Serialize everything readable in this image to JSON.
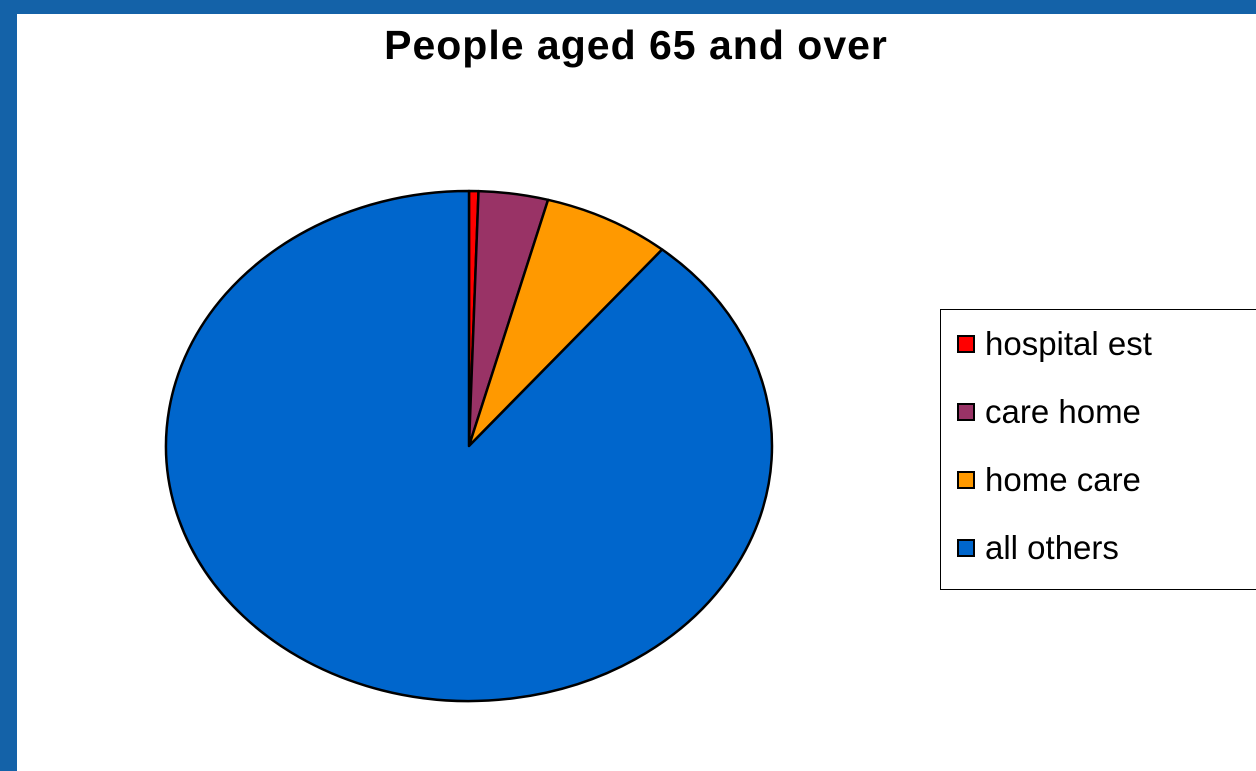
{
  "chart_data": {
    "type": "pie",
    "title": "People aged 65 and over",
    "legend_position": "right",
    "categories": [
      "hospital est",
      "care home",
      "home care",
      "all others"
    ],
    "values": [
      0.5,
      3.7,
      6.8,
      89.0
    ],
    "colors": [
      "#ff0000",
      "#993366",
      "#ff9900",
      "#0066cc"
    ],
    "start_angle_deg": 0,
    "direction": "clockwise"
  }
}
